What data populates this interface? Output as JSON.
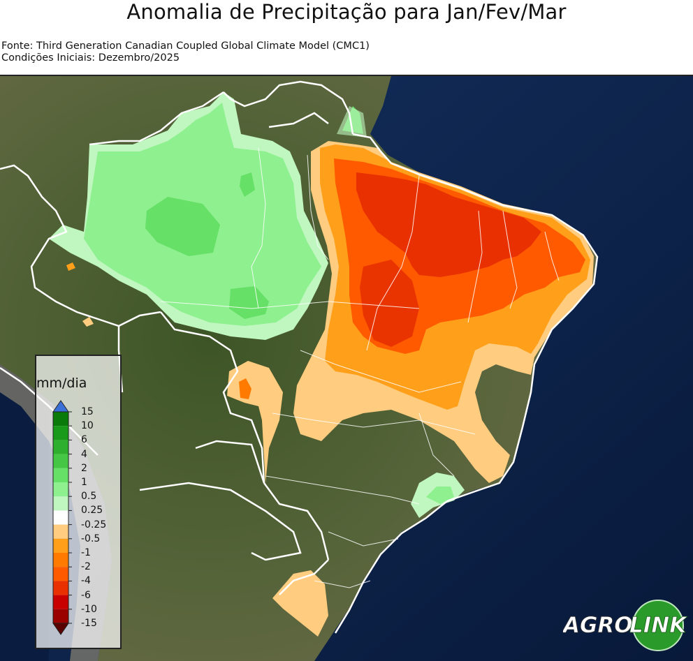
{
  "title": "Anomalia de Precipitação para Jan/Fev/Mar",
  "source_lines": [
    "Fonte: Third Generation Canadian Coupled Global Climate Model (CMC1)",
    "Condições Iniciais: Dezembro/2025"
  ],
  "legend": {
    "unit": "mm/dia",
    "ticks": [
      "15",
      "10",
      "6",
      "4",
      "2",
      "1",
      "0.5",
      "0.25",
      "-0.25",
      "-0.5",
      "-1",
      "-2",
      "-4",
      "-6",
      "-10",
      "-15"
    ],
    "colors": [
      "#0a7a0a",
      "#1a9a1a",
      "#2eaf2e",
      "#45c745",
      "#66e066",
      "#8ef08e",
      "#c0f7c0",
      "#ffffff",
      "#ffcc80",
      "#ff9f1a",
      "#ff7a00",
      "#ff5a00",
      "#e83000",
      "#c80000",
      "#9a0000"
    ],
    "top_color": "#3a6fd8",
    "bottom_color": "#5a0000"
  },
  "logo": {
    "left_text": "AGRO",
    "right_text": "LINK",
    "color": "#2a9a2a"
  },
  "colors": {
    "ocean": "#0c2350",
    "land": "#4a5a30",
    "border": "#ffffff"
  }
}
